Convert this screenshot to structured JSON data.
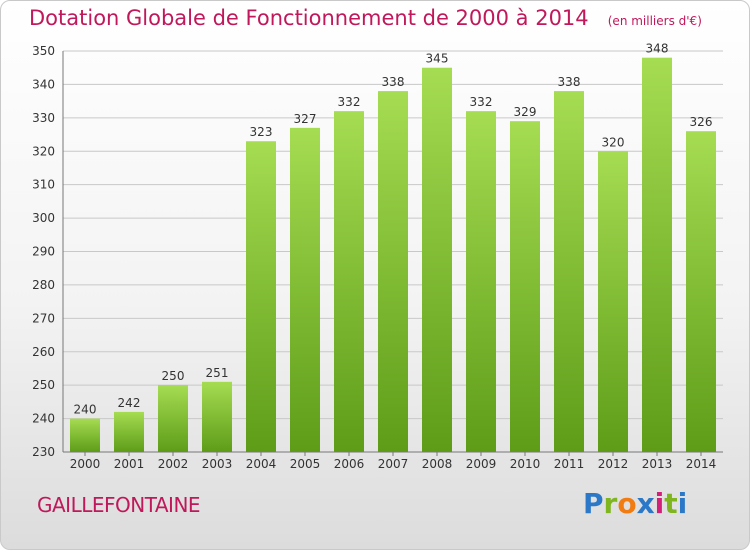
{
  "header": {
    "title": "Dotation Globale de Fonctionnement de 2000 à 2014",
    "unit": "(en milliers d'€)"
  },
  "footer": {
    "commune": "GAILLEFONTAINE",
    "logo_text": "Proxiti",
    "logo_colors": [
      "#2c78c8",
      "#7fb51e",
      "#f07c12",
      "#2c78c8",
      "#d11f7a",
      "#7fb51e",
      "#2c78c8"
    ]
  },
  "colors": {
    "bar_light": "#a5dc52",
    "bar_dark": "#5e9c18",
    "grid": "#c8c8c8",
    "title": "#c0185a"
  },
  "chart_data": {
    "type": "bar",
    "title": "Dotation Globale de Fonctionnement de 2000 à 2014",
    "subtitle": "(en milliers d'€)",
    "categories": [
      "2000",
      "2001",
      "2002",
      "2003",
      "2004",
      "2005",
      "2006",
      "2007",
      "2008",
      "2009",
      "2010",
      "2011",
      "2012",
      "2013",
      "2014"
    ],
    "values": [
      240,
      242,
      250,
      251,
      323,
      327,
      332,
      338,
      345,
      332,
      329,
      338,
      320,
      348,
      326
    ],
    "ylim": [
      230,
      350
    ],
    "yticks": [
      230,
      240,
      250,
      260,
      270,
      280,
      290,
      300,
      310,
      320,
      330,
      340,
      350
    ],
    "grid": true
  }
}
